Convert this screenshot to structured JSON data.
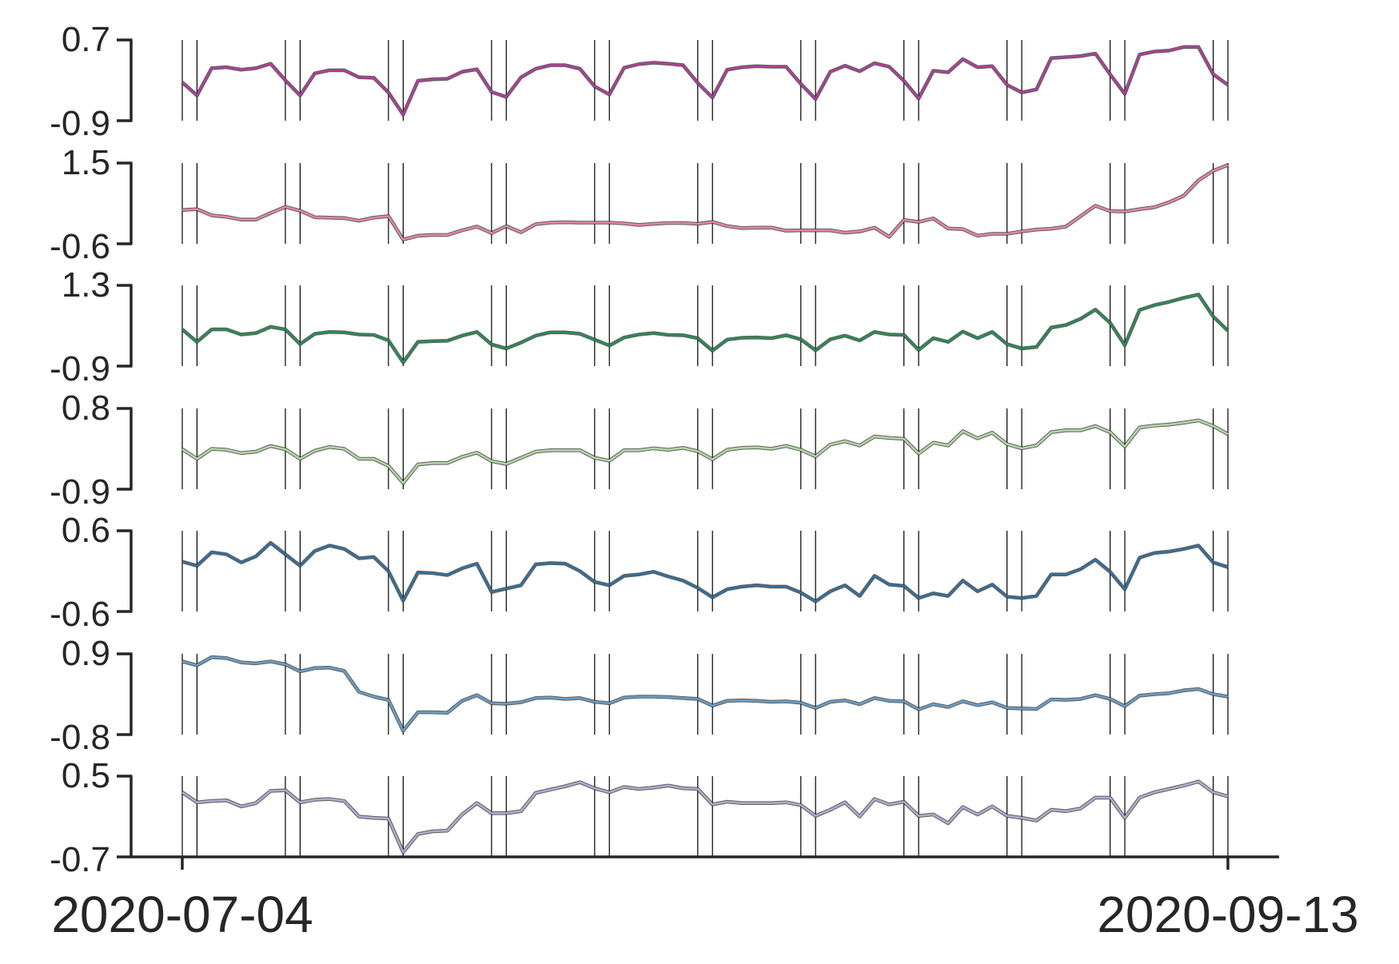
{
  "chart_data": {
    "type": "line",
    "title": "",
    "xlabel": "",
    "ylabel": "",
    "x_start": "2020-07-04",
    "x_end": "2020-09-13",
    "x_tick_labels": [
      "2020-07-04",
      "2020-09-13"
    ],
    "grid": false,
    "weekend_marker_days": [
      0,
      1,
      7,
      8,
      14,
      15,
      21,
      22,
      28,
      29,
      35,
      36,
      42,
      43,
      49,
      50,
      56,
      57,
      63,
      64,
      70,
      71
    ],
    "series": [
      {
        "name": "series-1",
        "color": "#ae3f99",
        "ylim": [
          -0.9,
          0.7
        ],
        "y_tick_labels": [
          "0.7",
          "-0.9"
        ],
        "values": [
          -0.14,
          -0.4,
          0.14,
          0.16,
          0.11,
          0.14,
          0.23,
          -0.1,
          -0.4,
          0.04,
          0.1,
          0.1,
          -0.04,
          -0.05,
          -0.34,
          -0.78,
          -0.11,
          -0.08,
          -0.07,
          0.07,
          0.12,
          -0.33,
          -0.43,
          -0.04,
          0.13,
          0.2,
          0.2,
          0.13,
          -0.22,
          -0.38,
          0.15,
          0.22,
          0.25,
          0.23,
          0.2,
          -0.15,
          -0.44,
          0.11,
          0.16,
          0.18,
          0.17,
          0.17,
          -0.17,
          -0.47,
          0.07,
          0.19,
          0.08,
          0.24,
          0.17,
          -0.11,
          -0.46,
          0.09,
          0.06,
          0.32,
          0.16,
          0.18,
          -0.19,
          -0.34,
          -0.28,
          0.34,
          0.36,
          0.38,
          0.43,
          0.02,
          -0.37,
          0.41,
          0.47,
          0.49,
          0.56,
          0.56,
          0.02,
          -0.19
        ]
      },
      {
        "name": "series-2",
        "color": "#e3869e",
        "ylim": [
          -0.6,
          1.5
        ],
        "y_tick_labels": [
          "1.5",
          "-0.6"
        ],
        "values": [
          0.28,
          0.3,
          0.14,
          0.1,
          0.03,
          0.03,
          0.2,
          0.36,
          0.26,
          0.09,
          0.08,
          0.07,
          0.0,
          0.08,
          0.12,
          -0.49,
          -0.39,
          -0.37,
          -0.37,
          -0.25,
          -0.15,
          -0.32,
          -0.14,
          -0.3,
          -0.09,
          -0.05,
          -0.04,
          -0.05,
          -0.05,
          -0.05,
          -0.07,
          -0.11,
          -0.08,
          -0.06,
          -0.06,
          -0.08,
          -0.03,
          -0.14,
          -0.19,
          -0.18,
          -0.18,
          -0.26,
          -0.25,
          -0.25,
          -0.25,
          -0.31,
          -0.28,
          -0.18,
          -0.42,
          0.02,
          -0.03,
          0.06,
          -0.2,
          -0.22,
          -0.39,
          -0.34,
          -0.34,
          -0.28,
          -0.23,
          -0.21,
          -0.15,
          0.12,
          0.39,
          0.25,
          0.24,
          0.3,
          0.35,
          0.48,
          0.65,
          1.05,
          1.3,
          1.45
        ]
      },
      {
        "name": "series-3",
        "color": "#2a8b55",
        "ylim": [
          -0.9,
          1.3
        ],
        "y_tick_labels": [
          "1.3",
          "-0.9"
        ],
        "values": [
          0.1,
          -0.24,
          0.1,
          0.1,
          -0.04,
          0.0,
          0.17,
          0.1,
          -0.3,
          -0.02,
          0.03,
          0.02,
          -0.04,
          -0.05,
          -0.2,
          -0.8,
          -0.24,
          -0.22,
          -0.21,
          -0.07,
          0.03,
          -0.31,
          -0.42,
          -0.26,
          -0.07,
          0.02,
          0.02,
          -0.02,
          -0.18,
          -0.34,
          -0.12,
          -0.04,
          -0.0,
          -0.05,
          -0.06,
          -0.14,
          -0.48,
          -0.18,
          -0.13,
          -0.12,
          -0.14,
          -0.06,
          -0.17,
          -0.47,
          -0.17,
          -0.07,
          -0.2,
          0.03,
          -0.04,
          -0.05,
          -0.46,
          -0.14,
          -0.24,
          0.04,
          -0.14,
          0.03,
          -0.3,
          -0.42,
          -0.38,
          0.15,
          0.22,
          0.39,
          0.64,
          0.28,
          -0.33,
          0.63,
          0.76,
          0.85,
          0.96,
          1.05,
          0.45,
          0.06
        ]
      },
      {
        "name": "series-4",
        "color": "#b2d6a6",
        "ylim": [
          -0.9,
          0.8
        ],
        "y_tick_labels": [
          "0.8",
          "-0.9"
        ],
        "values": [
          -0.06,
          -0.26,
          -0.05,
          -0.07,
          -0.14,
          -0.11,
          0.01,
          -0.06,
          -0.26,
          -0.09,
          -0.01,
          -0.05,
          -0.26,
          -0.26,
          -0.41,
          -0.77,
          -0.38,
          -0.35,
          -0.35,
          -0.22,
          -0.13,
          -0.31,
          -0.37,
          -0.24,
          -0.11,
          -0.08,
          -0.08,
          -0.08,
          -0.24,
          -0.3,
          -0.08,
          -0.08,
          -0.04,
          -0.07,
          -0.03,
          -0.1,
          -0.27,
          -0.07,
          -0.03,
          -0.02,
          -0.05,
          0.01,
          -0.07,
          -0.21,
          0.04,
          0.11,
          0.02,
          0.21,
          0.18,
          0.16,
          -0.15,
          0.08,
          0.02,
          0.32,
          0.17,
          0.29,
          0.05,
          -0.04,
          0.02,
          0.3,
          0.34,
          0.34,
          0.43,
          0.3,
          0.0,
          0.4,
          0.44,
          0.46,
          0.5,
          0.55,
          0.43,
          0.26
        ]
      },
      {
        "name": "series-5",
        "color": "#356f9a",
        "ylim": [
          -0.6,
          0.6
        ],
        "y_tick_labels": [
          "0.6",
          "-0.6"
        ],
        "values": [
          0.14,
          0.08,
          0.28,
          0.25,
          0.13,
          0.22,
          0.42,
          0.25,
          0.08,
          0.3,
          0.38,
          0.33,
          0.19,
          0.21,
          0.0,
          -0.44,
          -0.02,
          -0.03,
          -0.06,
          0.04,
          0.11,
          -0.31,
          -0.26,
          -0.21,
          0.1,
          0.12,
          0.11,
          0.0,
          -0.16,
          -0.21,
          -0.07,
          -0.05,
          -0.01,
          -0.08,
          -0.14,
          -0.25,
          -0.39,
          -0.27,
          -0.23,
          -0.21,
          -0.23,
          -0.23,
          -0.32,
          -0.45,
          -0.3,
          -0.21,
          -0.37,
          -0.07,
          -0.2,
          -0.22,
          -0.4,
          -0.33,
          -0.37,
          -0.14,
          -0.3,
          -0.2,
          -0.38,
          -0.4,
          -0.37,
          -0.05,
          -0.05,
          0.03,
          0.17,
          -0.01,
          -0.27,
          0.2,
          0.27,
          0.29,
          0.33,
          0.38,
          0.13,
          0.06
        ]
      },
      {
        "name": "series-6",
        "color": "#6a9dc4",
        "ylim": [
          -0.8,
          0.9
        ],
        "y_tick_labels": [
          "0.9",
          "-0.8"
        ],
        "values": [
          0.74,
          0.66,
          0.83,
          0.81,
          0.72,
          0.7,
          0.74,
          0.68,
          0.53,
          0.6,
          0.61,
          0.54,
          0.1,
          0.0,
          -0.07,
          -0.72,
          -0.33,
          -0.33,
          -0.34,
          -0.09,
          0.03,
          -0.14,
          -0.15,
          -0.12,
          -0.03,
          -0.02,
          -0.05,
          -0.03,
          -0.11,
          -0.14,
          -0.02,
          0.0,
          0.0,
          -0.01,
          -0.03,
          -0.05,
          -0.19,
          -0.09,
          -0.08,
          -0.09,
          -0.11,
          -0.1,
          -0.13,
          -0.24,
          -0.11,
          -0.08,
          -0.16,
          -0.03,
          -0.09,
          -0.1,
          -0.27,
          -0.16,
          -0.22,
          -0.1,
          -0.18,
          -0.12,
          -0.24,
          -0.25,
          -0.26,
          -0.06,
          -0.07,
          -0.05,
          0.03,
          -0.05,
          -0.2,
          0.02,
          0.05,
          0.07,
          0.13,
          0.16,
          0.05,
          0.0
        ]
      },
      {
        "name": "series-7",
        "color": "#b1aacd",
        "ylim": [
          -0.7,
          0.5
        ],
        "y_tick_labels": [
          "0.5",
          "-0.7"
        ],
        "values": [
          0.26,
          0.11,
          0.13,
          0.14,
          0.05,
          0.1,
          0.28,
          0.29,
          0.11,
          0.15,
          0.16,
          0.13,
          -0.1,
          -0.12,
          -0.13,
          -0.63,
          -0.36,
          -0.32,
          -0.31,
          -0.07,
          0.1,
          -0.05,
          -0.05,
          -0.02,
          0.25,
          0.3,
          0.35,
          0.41,
          0.32,
          0.26,
          0.34,
          0.31,
          0.33,
          0.36,
          0.32,
          0.31,
          0.08,
          0.12,
          0.1,
          0.1,
          0.1,
          0.11,
          0.07,
          -0.09,
          0.0,
          0.11,
          -0.1,
          0.16,
          0.08,
          0.12,
          -0.09,
          -0.07,
          -0.2,
          0.04,
          -0.07,
          0.05,
          -0.09,
          -0.12,
          -0.16,
          0.0,
          -0.02,
          0.02,
          0.18,
          0.18,
          -0.12,
          0.18,
          0.26,
          0.31,
          0.36,
          0.42,
          0.26,
          0.2
        ]
      }
    ]
  }
}
